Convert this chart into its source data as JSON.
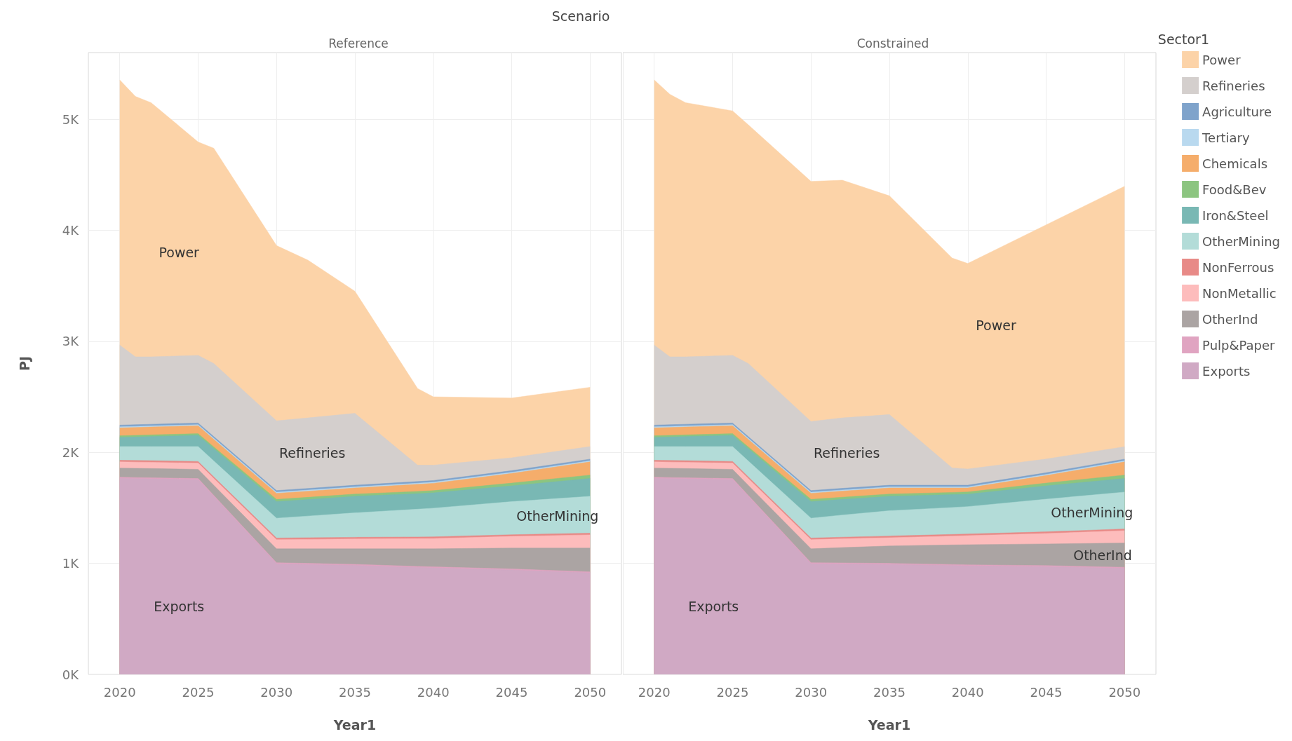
{
  "chart_data": [
    {
      "type": "area",
      "title": "Scenario",
      "subtitle": "Reference",
      "xlabel": "Year1",
      "ylabel": "PJ",
      "stacked": true,
      "grid": true,
      "legend": false,
      "x": [
        2020,
        2021,
        2022,
        2025,
        2026,
        2030,
        2032,
        2035,
        2039,
        2040,
        2045,
        2050
      ],
      "xlim": [
        2018,
        2052
      ],
      "xticks": [
        2020,
        2025,
        2030,
        2035,
        2040,
        2045,
        2050
      ],
      "ylim": [
        0,
        5600
      ],
      "yticks": [
        {
          "value": 0,
          "label": "0K"
        },
        {
          "value": 1000,
          "label": "1K"
        },
        {
          "value": 2000,
          "label": "2K"
        },
        {
          "value": 3000,
          "label": "3K"
        },
        {
          "value": 4000,
          "label": "4K"
        },
        {
          "value": 5000,
          "label": "5K"
        }
      ],
      "series": [
        {
          "name": "Exports",
          "color": "#d0a9c4",
          "values": [
            1765,
            1763,
            1761,
            1754,
            1602,
            996,
            990,
            981,
            963,
            959,
            940,
            914
          ]
        },
        {
          "color": "#e0a4c1",
          "values": [
            10,
            10,
            10,
            10,
            10,
            10,
            10,
            10,
            10,
            10,
            10,
            10
          ]
        },
        {
          "color": "#aba4a3",
          "values": [
            83,
            83,
            83,
            83,
            91,
            125,
            131,
            140,
            158,
            162,
            188,
            214
          ]
        },
        {
          "color": "#fdbcbc",
          "values": [
            56,
            56,
            56,
            56,
            61,
            82,
            85,
            89,
            92,
            93,
            105,
            119
          ]
        },
        {
          "color": "#e88a87",
          "values": [
            15,
            15,
            15,
            15,
            15,
            15,
            15,
            15,
            15,
            15,
            15,
            15
          ]
        },
        {
          "name": "OtherMining",
          "color": "#b3dcd8",
          "values": [
            123,
            125,
            127,
            134,
            143,
            179,
            195,
            220,
            250,
            258,
            298,
            332
          ]
        },
        {
          "color": "#79b8b4",
          "values": [
            82,
            86,
            90,
            101,
            111,
            149,
            149,
            149,
            140,
            138,
            142,
            161
          ]
        },
        {
          "color": "#8cc580",
          "values": [
            15,
            15,
            15,
            15,
            16,
            20,
            20,
            20,
            20,
            20,
            25,
            30
          ]
        },
        {
          "color": "#f5ad6b",
          "values": [
            71,
            71,
            71,
            71,
            68,
            55,
            55,
            55,
            64,
            66,
            87,
            119
          ]
        },
        {
          "color": "#b9d9ef",
          "values": [
            10,
            10,
            10,
            10,
            10,
            10,
            10,
            10,
            10,
            10,
            10,
            10
          ]
        },
        {
          "color": "#7fa3cb",
          "values": [
            15,
            15,
            15,
            15,
            15,
            15,
            15,
            15,
            15,
            15,
            15,
            15
          ]
        },
        {
          "name": "Refineries",
          "color": "#d4cfcd",
          "values": [
            721,
            611,
            607,
            609,
            658,
            628,
            635,
            647,
            147,
            138,
            116,
            113
          ]
        },
        {
          "name": "Power",
          "color": "#fcd3a8",
          "values": [
            2388,
            2345,
            2289,
            1922,
            1939,
            1578,
            1421,
            1100,
            691,
            616,
            538,
            534
          ]
        }
      ]
    },
    {
      "type": "area",
      "subtitle": "Constrained",
      "xlabel": "Year1",
      "stacked": true,
      "grid": true,
      "legend": "top right",
      "legend_title": "Sector1",
      "tick_labels": "x",
      "x": [
        2020,
        2021,
        2022,
        2025,
        2026,
        2030,
        2032,
        2035,
        2039,
        2040,
        2045,
        2050
      ],
      "xlim": [
        2018,
        2052
      ],
      "xticks": [
        2020,
        2025,
        2030,
        2035,
        2040,
        2045,
        2050
      ],
      "ylim": [
        0,
        5600
      ],
      "yticks": [
        {
          "value": 0,
          "label": null
        },
        {
          "value": 1000,
          "label": null
        },
        {
          "value": 2000,
          "label": null
        },
        {
          "value": 3000,
          "label": null
        },
        {
          "value": 4000,
          "label": null
        },
        {
          "value": 5000,
          "label": null
        }
      ],
      "series": [
        {
          "name": "Exports",
          "color": "#d0a9c4",
          "values": [
            1765,
            1763,
            1761,
            1754,
            1602,
            996,
            994,
            990,
            980,
            977,
            970,
            955
          ]
        },
        {
          "name": "Pulp&Paper",
          "color": "#e0a4c1",
          "values": [
            10,
            10,
            10,
            10,
            10,
            10,
            10,
            10,
            10,
            10,
            10,
            10
          ]
        },
        {
          "name": "OtherInd",
          "color": "#aba4a3",
          "values": [
            83,
            83,
            83,
            83,
            91,
            125,
            138,
            157,
            176,
            181,
            195,
            218
          ]
        },
        {
          "name": "NonMetallic",
          "color": "#fdbcbc",
          "values": [
            56,
            56,
            56,
            56,
            61,
            82,
            79,
            74,
            80,
            82,
            94,
            112
          ]
        },
        {
          "name": "NonFerrous",
          "color": "#e88a87",
          "values": [
            15,
            15,
            15,
            15,
            15,
            15,
            15,
            15,
            15,
            15,
            15,
            15
          ]
        },
        {
          "name": "OtherMining",
          "color": "#b3dcd8",
          "values": [
            123,
            125,
            127,
            134,
            143,
            179,
            199,
            228,
            242,
            246,
            294,
            332
          ]
        },
        {
          "name": "Iron&Steel",
          "color": "#79b8b4",
          "values": [
            82,
            86,
            90,
            101,
            111,
            149,
            141,
            130,
            116,
            112,
            120,
            123
          ]
        },
        {
          "name": "Food&Bev",
          "color": "#8cc580",
          "values": [
            15,
            15,
            15,
            15,
            16,
            20,
            20,
            20,
            20,
            20,
            25,
            30
          ]
        },
        {
          "name": "Chemicals",
          "color": "#f5ad6b",
          "values": [
            71,
            71,
            71,
            71,
            68,
            55,
            55,
            55,
            40,
            36,
            68,
            119
          ]
        },
        {
          "name": "Tertiary",
          "color": "#b9d9ef",
          "values": [
            10,
            10,
            10,
            10,
            10,
            10,
            10,
            10,
            10,
            10,
            10,
            10
          ]
        },
        {
          "name": "Agriculture",
          "color": "#7fa3cb",
          "values": [
            15,
            15,
            15,
            15,
            15,
            15,
            15,
            15,
            15,
            15,
            15,
            15
          ]
        },
        {
          "name": "Refineries",
          "color": "#d4cfcd",
          "values": [
            721,
            611,
            607,
            609,
            658,
            622,
            634,
            636,
            156,
            146,
            124,
            111
          ]
        },
        {
          "name": "Power",
          "color": "#fcd3a8",
          "values": [
            2388,
            2364,
            2289,
            2202,
            2150,
            2162,
            2141,
            1970,
            1890,
            1851,
            2109,
            2346
          ]
        }
      ]
    }
  ]
}
